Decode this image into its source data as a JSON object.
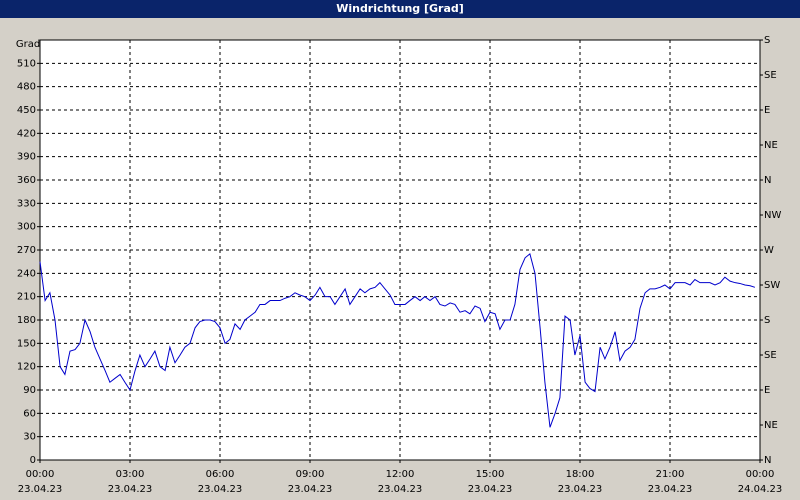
{
  "chart_data": {
    "type": "line",
    "title": "Windrichtung [Grad]",
    "ylabel": "Grad",
    "color": "#0000cc",
    "grid": true,
    "xlim": [
      0,
      24
    ],
    "xticks": [
      {
        "value": 0,
        "label": "00:00",
        "date": "23.04.23"
      },
      {
        "value": 3,
        "label": "03:00",
        "date": "23.04.23"
      },
      {
        "value": 6,
        "label": "06:00",
        "date": "23.04.23"
      },
      {
        "value": 9,
        "label": "09:00",
        "date": "23.04.23"
      },
      {
        "value": 12,
        "label": "12:00",
        "date": "23.04.23"
      },
      {
        "value": 15,
        "label": "15:00",
        "date": "23.04.23"
      },
      {
        "value": 18,
        "label": "18:00",
        "date": "23.04.23"
      },
      {
        "value": 21,
        "label": "21:00",
        "date": "23.04.23"
      },
      {
        "value": 24,
        "label": "00:00",
        "date": "24.04.23"
      }
    ],
    "ylim": [
      0,
      540
    ],
    "yticks": [
      0,
      30,
      60,
      90,
      120,
      150,
      180,
      210,
      240,
      270,
      300,
      330,
      360,
      390,
      420,
      450,
      480,
      510
    ],
    "y2lim": [
      0,
      540
    ],
    "y2ticks": [
      {
        "value": 0,
        "label": "N"
      },
      {
        "value": 45,
        "label": "NE"
      },
      {
        "value": 90,
        "label": "E"
      },
      {
        "value": 135,
        "label": "SE"
      },
      {
        "value": 180,
        "label": "S"
      },
      {
        "value": 225,
        "label": "SW"
      },
      {
        "value": 270,
        "label": "W"
      },
      {
        "value": 315,
        "label": "NW"
      },
      {
        "value": 360,
        "label": "N"
      },
      {
        "value": 405,
        "label": "NE"
      },
      {
        "value": 450,
        "label": "E"
      },
      {
        "value": 495,
        "label": "SE"
      },
      {
        "value": 540,
        "label": "S"
      }
    ],
    "x": [
      0,
      0.17,
      0.33,
      0.5,
      0.67,
      0.83,
      1,
      1.17,
      1.33,
      1.5,
      1.67,
      1.83,
      2,
      2.17,
      2.33,
      2.5,
      2.67,
      2.83,
      3,
      3.17,
      3.33,
      3.5,
      3.67,
      3.83,
      4,
      4.17,
      4.33,
      4.5,
      4.67,
      4.83,
      5,
      5.17,
      5.33,
      5.5,
      5.67,
      5.83,
      6,
      6.17,
      6.33,
      6.5,
      6.67,
      6.83,
      7,
      7.17,
      7.33,
      7.5,
      7.67,
      7.83,
      8,
      8.17,
      8.33,
      8.5,
      8.67,
      8.83,
      9,
      9.17,
      9.33,
      9.5,
      9.67,
      9.83,
      10,
      10.17,
      10.33,
      10.5,
      10.67,
      10.83,
      11,
      11.17,
      11.33,
      11.5,
      11.67,
      11.83,
      12,
      12.17,
      12.33,
      12.5,
      12.67,
      12.83,
      13,
      13.17,
      13.33,
      13.5,
      13.67,
      13.83,
      14,
      14.17,
      14.33,
      14.5,
      14.67,
      14.83,
      15,
      15.17,
      15.33,
      15.5,
      15.67,
      15.83,
      16,
      16.17,
      16.33,
      16.5,
      16.67,
      16.83,
      17,
      17.17,
      17.33,
      17.5,
      17.67,
      17.83,
      18,
      18.17,
      18.33,
      18.5,
      18.67,
      18.83,
      19,
      19.17,
      19.33,
      19.5,
      19.67,
      19.83,
      20,
      20.17,
      20.33,
      20.5,
      20.67,
      20.83,
      21,
      21.17,
      21.33,
      21.5,
      21.67,
      21.83,
      22,
      22.17,
      22.33,
      22.5,
      22.67,
      22.83,
      23,
      23.17,
      23.33,
      23.5,
      23.67,
      23.83
    ],
    "values": [
      255,
      205,
      215,
      180,
      120,
      110,
      140,
      142,
      150,
      180,
      165,
      145,
      130,
      115,
      100,
      105,
      110,
      100,
      90,
      115,
      135,
      120,
      130,
      140,
      120,
      115,
      145,
      125,
      135,
      145,
      150,
      170,
      178,
      180,
      180,
      178,
      170,
      150,
      155,
      175,
      168,
      180,
      185,
      190,
      200,
      200,
      205,
      205,
      205,
      208,
      210,
      215,
      212,
      210,
      205,
      212,
      222,
      210,
      210,
      200,
      210,
      220,
      200,
      210,
      220,
      215,
      220,
      222,
      228,
      220,
      212,
      200,
      200,
      200,
      205,
      210,
      205,
      210,
      205,
      210,
      200,
      198,
      202,
      200,
      190,
      192,
      188,
      198,
      195,
      178,
      190,
      188,
      168,
      180,
      180,
      200,
      245,
      260,
      265,
      240,
      170,
      100,
      42,
      60,
      80,
      185,
      180,
      135,
      160,
      100,
      92,
      88,
      145,
      130,
      145,
      165,
      128,
      140,
      145,
      155,
      195,
      215,
      220,
      220,
      222,
      225,
      220,
      228,
      228,
      228,
      225,
      232,
      228,
      228,
      228,
      225,
      228,
      235,
      230,
      228,
      227,
      225,
      224,
      222
    ]
  }
}
